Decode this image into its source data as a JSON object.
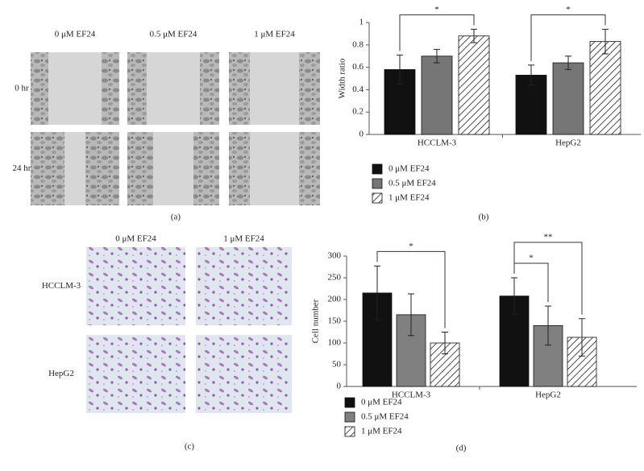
{
  "panel_a": {
    "columns": [
      "0 μM EF24",
      "0.5 μM EF24",
      "1 μM EF24"
    ],
    "rows": [
      "0 hr",
      "24 hr"
    ],
    "caption": "(a)"
  },
  "panel_c": {
    "columns": [
      "0 μM EF24",
      "1 μM EF24"
    ],
    "rows": [
      "HCCLM-3",
      "HepG2"
    ],
    "caption": "(c)"
  },
  "chart_data": [
    {
      "type": "bar",
      "caption": "(b)",
      "y_label": "Width ratio",
      "categories": [
        "HCCLM-3",
        "HepG2"
      ],
      "series": [
        {
          "name": "0 μM EF24",
          "color": "#111111",
          "values": [
            0.58,
            0.53
          ],
          "errors": [
            0.13,
            0.09
          ]
        },
        {
          "name": "0.5 μM EF24",
          "color": "#767676",
          "values": [
            0.7,
            0.64
          ],
          "errors": [
            0.06,
            0.06
          ]
        },
        {
          "name": "1 μM EF24",
          "color": "#ffffff",
          "hatch": true,
          "values": [
            0.88,
            0.83
          ],
          "errors": [
            0.06,
            0.11
          ]
        }
      ],
      "annotations": [
        {
          "text": "*",
          "category": "HCCLM-3",
          "from": "0 μM EF24",
          "to": "1 μM EF24"
        },
        {
          "text": "*",
          "category": "HepG2",
          "from": "0 μM EF24",
          "to": "1 μM EF24"
        }
      ],
      "ylim": [
        0,
        1
      ],
      "yticks": [
        0,
        0.2,
        0.4,
        0.6,
        0.8,
        1
      ],
      "grid": false
    },
    {
      "type": "bar",
      "caption": "(d)",
      "y_label": "Cell number",
      "categories": [
        "HCCLM-3",
        "HepG2"
      ],
      "series": [
        {
          "name": "0 μM EF24",
          "color": "#111111",
          "values": [
            215,
            208
          ],
          "errors": [
            62,
            42
          ]
        },
        {
          "name": "0.5 μM EF24",
          "color": "#808080",
          "values": [
            165,
            140
          ],
          "errors": [
            48,
            45
          ]
        },
        {
          "name": "1 μM EF24",
          "color": "#ffffff",
          "hatch": true,
          "values": [
            100,
            113
          ],
          "errors": [
            25,
            43
          ]
        }
      ],
      "annotations": [
        {
          "text": "*",
          "category": "HCCLM-3",
          "from": "0 μM EF24",
          "to": "1 μM EF24"
        },
        {
          "text": "*",
          "category": "HepG2",
          "from": "0 μM EF24",
          "to": "0.5 μM EF24"
        },
        {
          "text": "**",
          "category": "HepG2",
          "from": "0 μM EF24",
          "to": "1 μM EF24"
        }
      ],
      "ylim": [
        0,
        300
      ],
      "yticks": [
        0,
        50,
        100,
        150,
        200,
        250,
        300
      ],
      "grid": false
    }
  ]
}
